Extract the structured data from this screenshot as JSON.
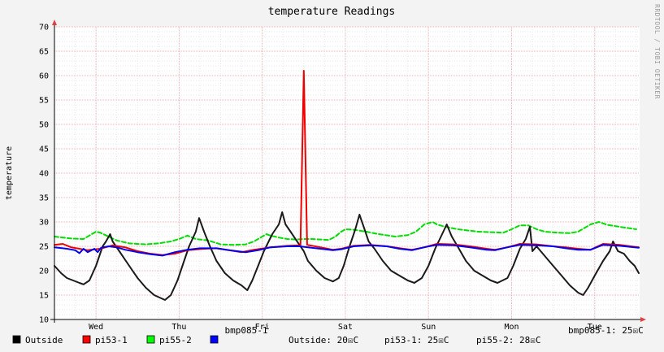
{
  "chart_data": {
    "type": "line",
    "title": "temperature Readings",
    "ylabel": "temperature",
    "xlabel": "",
    "ylim": [
      10,
      70
    ],
    "y_ticks": [
      10,
      15,
      20,
      25,
      30,
      35,
      40,
      45,
      50,
      55,
      60,
      65,
      70
    ],
    "x_range_days": [
      0,
      7.04
    ],
    "x_ticks": [
      {
        "label": "Wed",
        "day": 0.5
      },
      {
        "label": "Thu",
        "day": 1.5
      },
      {
        "label": "Fri",
        "day": 2.5
      },
      {
        "label": "Sat",
        "day": 3.5
      },
      {
        "label": "Sun",
        "day": 4.5
      },
      {
        "label": "Mon",
        "day": 5.5
      },
      {
        "label": "Tue",
        "day": 6.5
      }
    ],
    "day_boundaries": [
      0.5,
      1.5,
      2.5,
      3.5,
      4.5,
      5.5,
      6.5
    ],
    "watermark": "RRDTOOL / TOBI OETIKER",
    "series": [
      {
        "name": "Outside",
        "color": "#1a1a1a",
        "style": "solid",
        "width": 2,
        "points": [
          [
            0,
            21
          ],
          [
            0.08,
            19.5
          ],
          [
            0.15,
            18.5
          ],
          [
            0.3,
            17.5
          ],
          [
            0.35,
            17.2
          ],
          [
            0.42,
            18
          ],
          [
            0.5,
            21
          ],
          [
            0.58,
            25
          ],
          [
            0.62,
            26
          ],
          [
            0.67,
            27.5
          ],
          [
            0.7,
            26
          ],
          [
            0.78,
            24
          ],
          [
            0.9,
            21
          ],
          [
            1.0,
            18.5
          ],
          [
            1.1,
            16.5
          ],
          [
            1.2,
            15
          ],
          [
            1.33,
            14
          ],
          [
            1.4,
            15
          ],
          [
            1.48,
            18
          ],
          [
            1.56,
            22
          ],
          [
            1.62,
            25
          ],
          [
            1.7,
            28
          ],
          [
            1.74,
            30.8
          ],
          [
            1.8,
            28
          ],
          [
            1.87,
            25
          ],
          [
            1.95,
            22
          ],
          [
            2.05,
            19.5
          ],
          [
            2.15,
            18
          ],
          [
            2.25,
            17
          ],
          [
            2.32,
            16
          ],
          [
            2.38,
            18
          ],
          [
            2.45,
            21
          ],
          [
            2.52,
            24
          ],
          [
            2.62,
            27.5
          ],
          [
            2.7,
            29.5
          ],
          [
            2.74,
            32
          ],
          [
            2.78,
            29.5
          ],
          [
            2.84,
            28
          ],
          [
            2.92,
            26
          ],
          [
            3.0,
            24
          ],
          [
            3.05,
            22
          ],
          [
            3.15,
            20
          ],
          [
            3.25,
            18.5
          ],
          [
            3.35,
            17.8
          ],
          [
            3.42,
            18.5
          ],
          [
            3.48,
            21
          ],
          [
            3.55,
            25
          ],
          [
            3.62,
            28.5
          ],
          [
            3.67,
            31.5
          ],
          [
            3.72,
            29
          ],
          [
            3.78,
            26
          ],
          [
            3.85,
            24.5
          ],
          [
            3.95,
            22
          ],
          [
            4.05,
            20
          ],
          [
            4.15,
            19
          ],
          [
            4.25,
            18
          ],
          [
            4.33,
            17.5
          ],
          [
            4.42,
            18.5
          ],
          [
            4.5,
            21
          ],
          [
            4.58,
            24.5
          ],
          [
            4.65,
            27
          ],
          [
            4.72,
            29.5
          ],
          [
            4.78,
            27
          ],
          [
            4.85,
            25
          ],
          [
            4.95,
            22
          ],
          [
            5.05,
            20
          ],
          [
            5.15,
            19
          ],
          [
            5.25,
            18
          ],
          [
            5.33,
            17.5
          ],
          [
            5.45,
            18.5
          ],
          [
            5.52,
            21
          ],
          [
            5.6,
            24.5
          ],
          [
            5.67,
            26.5
          ],
          [
            5.72,
            29
          ],
          [
            5.75,
            24
          ],
          [
            5.8,
            25
          ],
          [
            5.9,
            23
          ],
          [
            6.0,
            21
          ],
          [
            6.1,
            19
          ],
          [
            6.2,
            17
          ],
          [
            6.3,
            15.5
          ],
          [
            6.36,
            15
          ],
          [
            6.42,
            16.5
          ],
          [
            6.5,
            19
          ],
          [
            6.6,
            22
          ],
          [
            6.68,
            24
          ],
          [
            6.72,
            26
          ],
          [
            6.78,
            24
          ],
          [
            6.85,
            23.5
          ],
          [
            6.92,
            22
          ],
          [
            6.98,
            21
          ],
          [
            7.03,
            19.5
          ]
        ]
      },
      {
        "name": "pi53-1",
        "color": "#ee0000",
        "style": "solid",
        "width": 2,
        "points": [
          [
            0,
            25.3
          ],
          [
            0.1,
            25.5
          ],
          [
            0.2,
            24.8
          ],
          [
            0.3,
            24.5
          ],
          [
            0.4,
            24.2
          ],
          [
            0.55,
            24.5
          ],
          [
            0.7,
            25.2
          ],
          [
            0.85,
            24.8
          ],
          [
            1.0,
            24
          ],
          [
            1.15,
            23.5
          ],
          [
            1.3,
            23.2
          ],
          [
            1.45,
            23.5
          ],
          [
            1.6,
            24.2
          ],
          [
            1.8,
            24.5
          ],
          [
            1.95,
            24.6
          ],
          [
            2.1,
            24.2
          ],
          [
            2.25,
            23.8
          ],
          [
            2.4,
            24.3
          ],
          [
            2.6,
            24.8
          ],
          [
            2.8,
            25.1
          ],
          [
            2.96,
            25.2
          ],
          [
            3.0,
            61
          ],
          [
            3.04,
            25.3
          ],
          [
            3.2,
            24.8
          ],
          [
            3.35,
            24.3
          ],
          [
            3.45,
            24.5
          ],
          [
            3.6,
            25.1
          ],
          [
            3.8,
            25.3
          ],
          [
            4.0,
            25
          ],
          [
            4.2,
            24.5
          ],
          [
            4.3,
            24.3
          ],
          [
            4.45,
            24.8
          ],
          [
            4.6,
            25.5
          ],
          [
            4.8,
            25.4
          ],
          [
            5.0,
            25
          ],
          [
            5.2,
            24.5
          ],
          [
            5.3,
            24.3
          ],
          [
            5.45,
            24.8
          ],
          [
            5.6,
            25.5
          ],
          [
            5.8,
            25.4
          ],
          [
            6.0,
            25
          ],
          [
            6.15,
            24.8
          ],
          [
            6.3,
            24.5
          ],
          [
            6.45,
            24.3
          ],
          [
            6.6,
            25.5
          ],
          [
            6.8,
            25.3
          ],
          [
            7.03,
            24.8
          ]
        ]
      },
      {
        "name": "pi55-2",
        "color": "#00dd00",
        "style": "dashed",
        "width": 2,
        "points": [
          [
            0,
            27
          ],
          [
            0.1,
            26.8
          ],
          [
            0.2,
            26.6
          ],
          [
            0.35,
            26.5
          ],
          [
            0.45,
            27.5
          ],
          [
            0.5,
            28
          ],
          [
            0.55,
            27.8
          ],
          [
            0.65,
            27
          ],
          [
            0.75,
            26.2
          ],
          [
            0.9,
            25.6
          ],
          [
            1.1,
            25.4
          ],
          [
            1.25,
            25.6
          ],
          [
            1.4,
            26
          ],
          [
            1.5,
            26.5
          ],
          [
            1.6,
            27.2
          ],
          [
            1.7,
            26.5
          ],
          [
            1.85,
            26.2
          ],
          [
            2.0,
            25.4
          ],
          [
            2.15,
            25.3
          ],
          [
            2.3,
            25.4
          ],
          [
            2.4,
            26
          ],
          [
            2.5,
            27
          ],
          [
            2.55,
            27.5
          ],
          [
            2.6,
            27.2
          ],
          [
            2.7,
            26.8
          ],
          [
            2.8,
            26.5
          ],
          [
            2.9,
            26.4
          ],
          [
            3.0,
            26.5
          ],
          [
            3.1,
            26.5
          ],
          [
            3.2,
            26.4
          ],
          [
            3.3,
            26.3
          ],
          [
            3.38,
            27
          ],
          [
            3.45,
            28
          ],
          [
            3.5,
            28.5
          ],
          [
            3.6,
            28.4
          ],
          [
            3.75,
            28
          ],
          [
            3.9,
            27.5
          ],
          [
            4.1,
            27
          ],
          [
            4.25,
            27.3
          ],
          [
            4.35,
            28
          ],
          [
            4.45,
            29.5
          ],
          [
            4.55,
            30
          ],
          [
            4.6,
            29.5
          ],
          [
            4.7,
            29
          ],
          [
            4.85,
            28.5
          ],
          [
            5.0,
            28.2
          ],
          [
            5.1,
            28
          ],
          [
            5.25,
            27.9
          ],
          [
            5.4,
            27.8
          ],
          [
            5.5,
            28.5
          ],
          [
            5.6,
            29.3
          ],
          [
            5.7,
            29.3
          ],
          [
            5.8,
            28.5
          ],
          [
            5.9,
            28
          ],
          [
            6.05,
            27.8
          ],
          [
            6.2,
            27.7
          ],
          [
            6.3,
            28
          ],
          [
            6.45,
            29.5
          ],
          [
            6.55,
            30
          ],
          [
            6.65,
            29.4
          ],
          [
            6.8,
            29
          ],
          [
            7.0,
            28.5
          ]
        ]
      },
      {
        "name": "bmp085-1",
        "color": "#0000ee",
        "style": "solid",
        "width": 2,
        "points": [
          [
            0,
            24.8
          ],
          [
            0.1,
            24.6
          ],
          [
            0.15,
            24.5
          ],
          [
            0.25,
            24.2
          ],
          [
            0.3,
            23.6
          ],
          [
            0.35,
            24.5
          ],
          [
            0.4,
            23.8
          ],
          [
            0.48,
            24.5
          ],
          [
            0.52,
            23.8
          ],
          [
            0.56,
            24.7
          ],
          [
            0.65,
            25
          ],
          [
            0.75,
            24.8
          ],
          [
            0.85,
            24.3
          ],
          [
            1.0,
            23.8
          ],
          [
            1.15,
            23.4
          ],
          [
            1.3,
            23.1
          ],
          [
            1.45,
            23.8
          ],
          [
            1.6,
            24.3
          ],
          [
            1.75,
            24.6
          ],
          [
            1.95,
            24.6
          ],
          [
            2.1,
            24.2
          ],
          [
            2.3,
            23.8
          ],
          [
            2.45,
            24.2
          ],
          [
            2.6,
            24.8
          ],
          [
            2.8,
            25
          ],
          [
            2.95,
            25
          ],
          [
            3.05,
            24.8
          ],
          [
            3.2,
            24.5
          ],
          [
            3.35,
            24.2
          ],
          [
            3.45,
            24.4
          ],
          [
            3.6,
            25
          ],
          [
            3.8,
            25.2
          ],
          [
            4.0,
            25
          ],
          [
            4.15,
            24.5
          ],
          [
            4.3,
            24.2
          ],
          [
            4.45,
            24.8
          ],
          [
            4.6,
            25.3
          ],
          [
            4.8,
            25.2
          ],
          [
            5.0,
            24.8
          ],
          [
            5.2,
            24.3
          ],
          [
            5.3,
            24.2
          ],
          [
            5.45,
            24.8
          ],
          [
            5.6,
            25.3
          ],
          [
            5.8,
            25.2
          ],
          [
            6.0,
            25
          ],
          [
            6.15,
            24.6
          ],
          [
            6.3,
            24.3
          ],
          [
            6.45,
            24.3
          ],
          [
            6.6,
            25.3
          ],
          [
            6.8,
            25.1
          ],
          [
            7.03,
            24.7
          ]
        ]
      }
    ],
    "legend": [
      {
        "label": "Outside",
        "color": "#000000"
      },
      {
        "label": "pi53-1",
        "color": "#ff0000"
      },
      {
        "label": "pi55-2",
        "color": "#00ff00"
      },
      {
        "label": "",
        "color": "#0000ff"
      }
    ],
    "legend_text_extra": "bmp085-1",
    "readings": [
      {
        "text": "Outside: 20☒C"
      },
      {
        "text": "pi53-1: 25☒C"
      },
      {
        "text": "pi55-2: 28☒C"
      },
      {
        "text": "bmp085-1: 25☒C"
      }
    ]
  }
}
